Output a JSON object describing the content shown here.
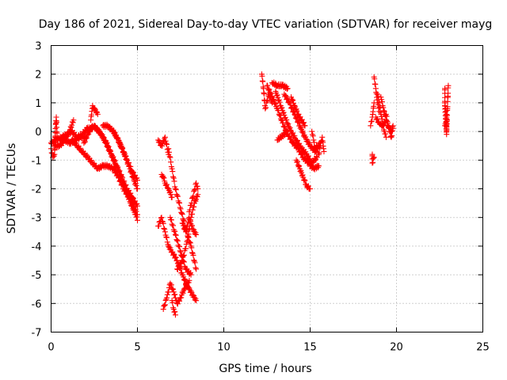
{
  "chart_data": {
    "type": "scatter",
    "title": "Day 186 of 2021, Sidereal Day-to-day VTEC variation (SDTVAR) for receiver mayg",
    "xlabel": "GPS time / hours",
    "ylabel": "SDTVAR / TECUs",
    "xlim": [
      0,
      25
    ],
    "ylim": [
      -7,
      3
    ],
    "xticks": [
      0,
      5,
      10,
      15,
      20,
      25
    ],
    "yticks": [
      3,
      2,
      1,
      0,
      -1,
      -2,
      -3,
      -4,
      -5,
      -6,
      -7
    ],
    "grid": true,
    "marker": "plus",
    "color": "#ff0000",
    "series": [
      {
        "name": "SDTVAR",
        "tracks": [
          {
            "x": [
              0.0,
              0.1,
              0.2,
              0.25,
              0.3,
              0.35
            ],
            "y": [
              -0.6,
              -0.9,
              -0.8,
              0.1,
              0.5,
              -0.2
            ]
          },
          {
            "x": [
              0.0,
              0.3,
              0.6,
              0.9,
              1.2,
              1.5,
              1.8,
              2.1,
              2.4
            ],
            "y": [
              -0.4,
              -0.3,
              -0.2,
              -0.1,
              0.0,
              -0.2,
              -0.1,
              0.1,
              0.1
            ]
          },
          {
            "x": [
              0.2,
              0.5,
              0.8,
              1.1,
              1.4,
              1.7,
              2.0
            ],
            "y": [
              -0.5,
              -0.5,
              -0.3,
              -0.4,
              -0.3,
              -0.2,
              -0.2
            ]
          },
          {
            "x": [
              0.5,
              0.8,
              1.0,
              1.3
            ],
            "y": [
              -0.3,
              -0.2,
              -0.1,
              0.4
            ]
          },
          {
            "x": [
              1.2,
              1.5,
              1.8,
              2.1,
              2.4,
              2.7,
              3.0,
              3.3,
              3.6,
              3.9,
              4.2,
              4.5,
              4.8,
              5.0
            ],
            "y": [
              -0.3,
              -0.5,
              -0.7,
              -0.9,
              -1.1,
              -1.3,
              -1.2,
              -1.2,
              -1.3,
              -1.6,
              -2.0,
              -2.3,
              -2.6,
              -2.9
            ]
          },
          {
            "x": [
              1.9,
              2.2,
              2.4,
              2.6,
              2.9,
              3.2,
              3.5,
              3.8,
              4.1,
              4.4,
              4.7,
              5.0
            ],
            "y": [
              -0.4,
              0.0,
              0.2,
              0.1,
              -0.1,
              -0.4,
              -0.8,
              -1.2,
              -1.6,
              -2.0,
              -2.3,
              -2.6
            ]
          },
          {
            "x": [
              2.3,
              2.4,
              2.5,
              2.7
            ],
            "y": [
              0.4,
              0.9,
              0.8,
              0.6
            ]
          },
          {
            "x": [
              2.5,
              2.8,
              3.1,
              3.4,
              3.7,
              4.0,
              4.3,
              4.6,
              4.9,
              5.0
            ],
            "y": [
              0.2,
              0.0,
              -0.3,
              -0.7,
              -1.1,
              -1.5,
              -2.0,
              -2.5,
              -2.9,
              -3.1
            ]
          },
          {
            "x": [
              3.0,
              3.3,
              3.6,
              3.9,
              4.2,
              4.5,
              4.8,
              5.0
            ],
            "y": [
              0.2,
              0.2,
              0.0,
              -0.3,
              -0.7,
              -1.2,
              -1.7,
              -2.0
            ]
          },
          {
            "x": [
              3.5,
              3.8,
              4.1,
              4.4,
              4.7,
              5.0
            ],
            "y": [
              0.1,
              -0.2,
              -0.6,
              -1.0,
              -1.4,
              -1.7
            ]
          },
          {
            "x": [
              6.2,
              6.4,
              6.6,
              6.8
            ],
            "y": [
              -0.3,
              -0.5,
              -0.2,
              -0.8
            ]
          },
          {
            "x": [
              6.4,
              6.5,
              6.6,
              6.8,
              7.0
            ],
            "y": [
              -1.5,
              -1.6,
              -1.8,
              -2.0,
              -2.3
            ]
          },
          {
            "x": [
              6.2,
              6.4,
              6.6,
              6.8,
              7.0,
              7.3,
              7.6,
              7.9,
              8.2,
              8.4
            ],
            "y": [
              -3.3,
              -3.0,
              -3.5,
              -4.0,
              -4.2,
              -4.5,
              -5.0,
              -5.4,
              -5.7,
              -5.9
            ]
          },
          {
            "x": [
              6.5,
              6.7,
              6.9,
              7.1,
              7.3,
              7.5,
              7.7,
              8.0
            ],
            "y": [
              -6.2,
              -5.8,
              -5.3,
              -5.6,
              -6.0,
              -5.8,
              -5.5,
              -5.2
            ]
          },
          {
            "x": [
              6.8,
              7.0,
              7.2,
              7.5,
              7.8,
              8.1,
              8.4
            ],
            "y": [
              -0.6,
              -1.3,
              -2.0,
              -2.7,
              -3.4,
              -4.0,
              -4.8
            ]
          },
          {
            "x": [
              7.3,
              7.6,
              7.9,
              8.1,
              8.3,
              8.5
            ],
            "y": [
              -4.8,
              -4.5,
              -3.8,
              -3.0,
              -2.5,
              -2.2
            ]
          },
          {
            "x": [
              6.9,
              7.2,
              7.5,
              7.8,
              8.1
            ],
            "y": [
              -3.0,
              -3.6,
              -4.2,
              -4.8,
              -5.0
            ]
          },
          {
            "x": [
              7.0,
              7.1,
              7.2
            ],
            "y": [
              -5.9,
              -6.2,
              -6.4
            ]
          },
          {
            "x": [
              8.0,
              8.2,
              8.4,
              8.5
            ],
            "y": [
              -2.8,
              -2.3,
              -1.8,
              -2.0
            ]
          },
          {
            "x": [
              7.6,
              7.8,
              8.0,
              8.2,
              8.4
            ],
            "y": [
              -3.2,
              -3.5,
              -3.0,
              -3.4,
              -3.6
            ]
          },
          {
            "x": [
              12.2,
              12.3,
              12.4,
              12.6,
              12.8
            ],
            "y": [
              2.0,
              1.5,
              0.8,
              1.3,
              1.0
            ]
          },
          {
            "x": [
              12.5,
              12.8,
              13.1,
              13.4,
              13.7,
              14.0,
              14.3,
              14.6,
              14.9,
              15.2,
              15.5
            ],
            "y": [
              1.6,
              1.2,
              0.8,
              0.3,
              -0.1,
              -0.4,
              -0.6,
              -0.9,
              -1.1,
              -1.3,
              -1.2
            ]
          },
          {
            "x": [
              12.8,
              13.1,
              13.4,
              13.7
            ],
            "y": [
              1.7,
              1.6,
              1.6,
              1.5
            ]
          },
          {
            "x": [
              13.0,
              13.3,
              13.6,
              13.9,
              14.2,
              14.5,
              14.8,
              15.1,
              15.4
            ],
            "y": [
              1.4,
              0.9,
              0.4,
              0.0,
              -0.3,
              -0.6,
              -0.8,
              -1.1,
              -0.9
            ]
          },
          {
            "x": [
              13.5,
              13.8,
              14.1,
              14.4,
              14.7,
              15.0,
              15.3,
              15.6
            ],
            "y": [
              1.3,
              1.0,
              0.6,
              0.2,
              -0.2,
              -0.5,
              -0.7,
              -0.4
            ]
          },
          {
            "x": [
              13.9,
              14.1,
              14.3,
              14.5,
              14.7
            ],
            "y": [
              1.2,
              0.9,
              0.6,
              0.4,
              0.2
            ]
          },
          {
            "x": [
              13.1,
              13.3,
              13.5,
              13.7
            ],
            "y": [
              -0.3,
              -0.2,
              -0.1,
              0.0
            ]
          },
          {
            "x": [
              14.2,
              14.4,
              14.6,
              14.8,
              15.0
            ],
            "y": [
              -1.0,
              -1.3,
              -1.6,
              -1.9,
              -2.0
            ]
          },
          {
            "x": [
              15.1,
              15.2,
              15.3,
              15.4,
              15.5,
              15.6,
              15.7,
              15.8
            ],
            "y": [
              0.0,
              -0.3,
              -0.6,
              -0.5,
              -0.8,
              -0.5,
              -0.2,
              -0.7
            ]
          },
          {
            "x": [
              18.6,
              18.6,
              18.7
            ],
            "y": [
              -0.8,
              -1.1,
              -0.9
            ]
          },
          {
            "x": [
              18.5,
              18.6,
              18.7
            ],
            "y": [
              0.2,
              0.5,
              1.0
            ]
          },
          {
            "x": [
              18.7,
              18.8,
              18.9,
              19.0
            ],
            "y": [
              1.9,
              1.5,
              1.0,
              0.7
            ]
          },
          {
            "x": [
              18.9,
              19.0,
              19.1,
              19.2,
              19.3,
              19.4
            ],
            "y": [
              1.3,
              1.0,
              0.6,
              0.3,
              0.0,
              -0.2
            ]
          },
          {
            "x": [
              19.1,
              19.2,
              19.3,
              19.4,
              19.5,
              19.6,
              19.7,
              19.8
            ],
            "y": [
              1.2,
              0.9,
              0.7,
              0.4,
              0.2,
              0.1,
              0.0,
              0.2
            ]
          },
          {
            "x": [
              19.4,
              19.5,
              19.6,
              19.7,
              19.8
            ],
            "y": [
              0.6,
              0.3,
              0.0,
              -0.2,
              0.1
            ]
          },
          {
            "x": [
              18.8,
              19.0,
              19.2,
              19.4
            ],
            "y": [
              0.5,
              0.3,
              0.2,
              0.4
            ]
          },
          {
            "x": [
              22.8,
              22.8,
              22.9,
              22.9,
              23.0
            ],
            "y": [
              1.5,
              1.0,
              0.5,
              0.0,
              1.6
            ]
          },
          {
            "x": [
              22.8,
              22.9,
              22.9,
              22.8
            ],
            "y": [
              0.2,
              0.6,
              -0.1,
              0.9
            ]
          }
        ]
      }
    ]
  }
}
